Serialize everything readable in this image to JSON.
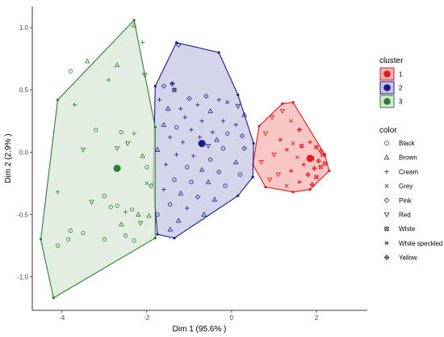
{
  "chart_data": {
    "type": "scatter",
    "xlabel": "Dim 1 (95.6% )",
    "ylabel": "Dim 2 (2.9% )",
    "xlim": [
      -4.7,
      3.2
    ],
    "ylim": [
      -1.27,
      1.17
    ],
    "x_ticks": [
      -4,
      -2,
      0,
      2
    ],
    "y_ticks": [
      -1.0,
      -0.5,
      0.0,
      0.5,
      1.0
    ],
    "x_tick_labels": [
      "-4",
      "-2",
      "0",
      "2"
    ],
    "y_tick_labels": [
      "-1.0",
      "-0.5",
      "0.0",
      "0.5",
      "1.0"
    ],
    "grid": false,
    "legend_position": "right",
    "clusters": [
      {
        "name": "1",
        "color": "#e41a1c",
        "fill": "#f8b4b4",
        "centroid": [
          1.85,
          -0.05
        ],
        "hull": [
          [
            0.65,
            0.21
          ],
          [
            1.2,
            0.39
          ],
          [
            1.45,
            0.4
          ],
          [
            2.2,
            -0.02
          ],
          [
            2.3,
            -0.15
          ],
          [
            1.85,
            -0.3
          ],
          [
            1.45,
            -0.32
          ],
          [
            0.8,
            -0.28
          ],
          [
            0.5,
            -0.1
          ]
        ]
      },
      {
        "name": "2",
        "color": "#1a1a8c",
        "fill": "#c5c6e3",
        "centroid": [
          -0.7,
          0.07
        ],
        "hull": [
          [
            -1.3,
            0.88
          ],
          [
            -0.3,
            0.8
          ],
          [
            0.15,
            0.46
          ],
          [
            0.52,
            0.07
          ],
          [
            0.5,
            -0.2
          ],
          [
            0.15,
            -0.35
          ],
          [
            -1.35,
            -0.69
          ],
          [
            -1.75,
            -0.66
          ],
          [
            -1.85,
            -0.25
          ],
          [
            -1.8,
            0.53
          ]
        ]
      },
      {
        "name": "3",
        "color": "#2e7d32",
        "fill": "#d8e8d6",
        "centroid": [
          -2.7,
          -0.13
        ],
        "hull": [
          [
            -2.3,
            1.06
          ],
          [
            -1.8,
            0.2
          ],
          [
            -1.8,
            -0.69
          ],
          [
            -4.2,
            -1.17
          ],
          [
            -4.5,
            -0.7
          ],
          [
            -4.1,
            0.42
          ]
        ]
      }
    ],
    "color_legend_title": "color",
    "color_legend": [
      {
        "label": "Black",
        "shape": "circle"
      },
      {
        "label": "Brown",
        "shape": "triangle"
      },
      {
        "label": "Cream",
        "shape": "plus"
      },
      {
        "label": "Grey",
        "shape": "cross"
      },
      {
        "label": "Pink",
        "shape": "diamond"
      },
      {
        "label": "Red",
        "shape": "triangle-down"
      },
      {
        "label": "White",
        "shape": "square-cross"
      },
      {
        "label": "White speckled",
        "shape": "asterisk"
      },
      {
        "label": "Yellow",
        "shape": "diamond-plus"
      }
    ],
    "cluster_legend_title": "cluster",
    "points": [
      {
        "cluster": 3,
        "shape": "plus",
        "x": -2.1,
        "y": 0.88
      },
      {
        "cluster": 3,
        "shape": "triangle",
        "x": -2.3,
        "y": 1.02
      },
      {
        "cluster": 3,
        "shape": "triangle",
        "x": -3.4,
        "y": 0.73
      },
      {
        "cluster": 3,
        "shape": "triangle",
        "x": -2.7,
        "y": 0.7
      },
      {
        "cluster": 3,
        "shape": "triangle-down",
        "x": -2.05,
        "y": 0.62
      },
      {
        "cluster": 3,
        "shape": "circle",
        "x": -3.8,
        "y": 0.65
      },
      {
        "cluster": 3,
        "shape": "plus",
        "x": -2.9,
        "y": 0.58
      },
      {
        "cluster": 3,
        "shape": "plus",
        "x": -3.7,
        "y": 0.38
      },
      {
        "cluster": 3,
        "shape": "circle",
        "x": -3.2,
        "y": 0.18
      },
      {
        "cluster": 3,
        "shape": "circle",
        "x": -2.6,
        "y": 0.16
      },
      {
        "cluster": 3,
        "shape": "plus",
        "x": -2.3,
        "y": 0.15
      },
      {
        "cluster": 3,
        "shape": "triangle-down",
        "x": -2.45,
        "y": 0.07
      },
      {
        "cluster": 3,
        "shape": "triangle-down",
        "x": -3.5,
        "y": 0.02
      },
      {
        "cluster": 3,
        "shape": "triangle-down",
        "x": -2.7,
        "y": 0.03
      },
      {
        "cluster": 3,
        "shape": "triangle",
        "x": -2.1,
        "y": -0.03
      },
      {
        "cluster": 3,
        "shape": "circle",
        "x": -2.0,
        "y": -0.12
      },
      {
        "cluster": 3,
        "shape": "cross",
        "x": -2.0,
        "y": -0.25
      },
      {
        "cluster": 3,
        "shape": "plus",
        "x": -4.1,
        "y": -0.32
      },
      {
        "cluster": 3,
        "shape": "circle",
        "x": -3.0,
        "y": -0.35
      },
      {
        "cluster": 3,
        "shape": "triangle-down",
        "x": -3.3,
        "y": -0.4
      },
      {
        "cluster": 3,
        "shape": "circle",
        "x": -2.85,
        "y": -0.44
      },
      {
        "cluster": 3,
        "shape": "circle",
        "x": -2.7,
        "y": -0.43
      },
      {
        "cluster": 3,
        "shape": "circle",
        "x": -2.35,
        "y": -0.46
      },
      {
        "cluster": 3,
        "shape": "plus",
        "x": -2.5,
        "y": -0.48
      },
      {
        "cluster": 3,
        "shape": "triangle",
        "x": -2.2,
        "y": -0.5
      },
      {
        "cluster": 3,
        "shape": "triangle",
        "x": -2.6,
        "y": -0.58
      },
      {
        "cluster": 3,
        "shape": "triangle",
        "x": -1.95,
        "y": -0.51
      },
      {
        "cluster": 3,
        "shape": "triangle-down",
        "x": -2.15,
        "y": -0.57
      },
      {
        "cluster": 3,
        "shape": "circle",
        "x": -3.8,
        "y": -0.63
      },
      {
        "cluster": 3,
        "shape": "circle",
        "x": -3.85,
        "y": -0.7
      },
      {
        "cluster": 3,
        "shape": "circle",
        "x": -3.5,
        "y": -0.65
      },
      {
        "cluster": 3,
        "shape": "circle",
        "x": -2.5,
        "y": -0.67
      },
      {
        "cluster": 3,
        "shape": "circle",
        "x": -2.3,
        "y": -0.71
      },
      {
        "cluster": 3,
        "shape": "circle",
        "x": -3.0,
        "y": -0.7
      },
      {
        "cluster": 3,
        "shape": "circle",
        "x": -4.1,
        "y": -0.75
      },
      {
        "cluster": 3,
        "shape": "diamond",
        "x": -1.9,
        "y": -0.27
      },
      {
        "cluster": 2,
        "shape": "diamond",
        "x": -1.25,
        "y": 0.86
      },
      {
        "cluster": 2,
        "shape": "diamond-plus",
        "x": -1.4,
        "y": 0.55
      },
      {
        "cluster": 2,
        "shape": "square-cross",
        "x": -1.35,
        "y": 0.5
      },
      {
        "cluster": 2,
        "shape": "diamond",
        "x": -1.6,
        "y": 0.53
      },
      {
        "cluster": 2,
        "shape": "plus",
        "x": -1.7,
        "y": 0.42
      },
      {
        "cluster": 2,
        "shape": "diamond",
        "x": -1.0,
        "y": 0.43
      },
      {
        "cluster": 2,
        "shape": "diamond",
        "x": -0.6,
        "y": 0.45
      },
      {
        "cluster": 2,
        "shape": "plus",
        "x": -0.3,
        "y": 0.42
      },
      {
        "cluster": 2,
        "shape": "cross",
        "x": -0.1,
        "y": 0.4
      },
      {
        "cluster": 2,
        "shape": "triangle-down",
        "x": 0.15,
        "y": 0.37
      },
      {
        "cluster": 2,
        "shape": "plus",
        "x": -0.8,
        "y": 0.38
      },
      {
        "cluster": 2,
        "shape": "plus",
        "x": -1.2,
        "y": 0.35
      },
      {
        "cluster": 2,
        "shape": "triangle",
        "x": -1.5,
        "y": 0.35
      },
      {
        "cluster": 2,
        "shape": "triangle",
        "x": -0.5,
        "y": 0.33
      },
      {
        "cluster": 2,
        "shape": "triangle",
        "x": 0.3,
        "y": 0.3
      },
      {
        "cluster": 2,
        "shape": "plus",
        "x": -1.1,
        "y": 0.28
      },
      {
        "cluster": 2,
        "shape": "plus",
        "x": -0.7,
        "y": 0.25
      },
      {
        "cluster": 2,
        "shape": "plus",
        "x": -0.2,
        "y": 0.25
      },
      {
        "cluster": 2,
        "shape": "plus",
        "x": 0.1,
        "y": 0.22
      },
      {
        "cluster": 2,
        "shape": "triangle",
        "x": -1.6,
        "y": 0.22
      },
      {
        "cluster": 2,
        "shape": "circle",
        "x": -1.3,
        "y": 0.2
      },
      {
        "cluster": 2,
        "shape": "plus",
        "x": -0.95,
        "y": 0.18
      },
      {
        "cluster": 2,
        "shape": "plus",
        "x": -0.45,
        "y": 0.16
      },
      {
        "cluster": 2,
        "shape": "circle",
        "x": -0.1,
        "y": 0.15
      },
      {
        "cluster": 2,
        "shape": "diamond",
        "x": 0.25,
        "y": 0.13
      },
      {
        "cluster": 2,
        "shape": "plus",
        "x": -1.45,
        "y": 0.12
      },
      {
        "cluster": 2,
        "shape": "plus",
        "x": -0.75,
        "y": 0.12
      },
      {
        "cluster": 2,
        "shape": "triangle",
        "x": -0.35,
        "y": 0.1
      },
      {
        "cluster": 2,
        "shape": "plus",
        "x": -1.15,
        "y": 0.08
      },
      {
        "cluster": 2,
        "shape": "triangle-down",
        "x": -0.55,
        "y": 0.05
      },
      {
        "cluster": 2,
        "shape": "circle",
        "x": -0.2,
        "y": 0.03
      },
      {
        "cluster": 2,
        "shape": "diamond",
        "x": 0.3,
        "y": 0.03
      },
      {
        "cluster": 2,
        "shape": "triangle",
        "x": -1.75,
        "y": 0.02
      },
      {
        "cluster": 2,
        "shape": "plus",
        "x": -1.3,
        "y": -0.02
      },
      {
        "cluster": 2,
        "shape": "plus",
        "x": -0.9,
        "y": -0.03
      },
      {
        "cluster": 2,
        "shape": "circle",
        "x": -0.5,
        "y": -0.06
      },
      {
        "cluster": 2,
        "shape": "triangle",
        "x": 0.1,
        "y": -0.08
      },
      {
        "cluster": 2,
        "shape": "plus",
        "x": -1.55,
        "y": -0.1
      },
      {
        "cluster": 2,
        "shape": "circle",
        "x": -1.05,
        "y": -0.12
      },
      {
        "cluster": 2,
        "shape": "triangle",
        "x": -0.7,
        "y": -0.14
      },
      {
        "cluster": 2,
        "shape": "diamond",
        "x": -0.3,
        "y": -0.16
      },
      {
        "cluster": 2,
        "shape": "circle",
        "x": 0.2,
        "y": -0.18
      },
      {
        "cluster": 2,
        "shape": "circle",
        "x": -1.35,
        "y": -0.22
      },
      {
        "cluster": 2,
        "shape": "circle",
        "x": -0.95,
        "y": -0.24
      },
      {
        "cluster": 2,
        "shape": "triangle",
        "x": -0.55,
        "y": -0.24
      },
      {
        "cluster": 2,
        "shape": "circle",
        "x": -0.15,
        "y": -0.27
      },
      {
        "cluster": 2,
        "shape": "plus",
        "x": -1.6,
        "y": -0.3
      },
      {
        "cluster": 2,
        "shape": "triangle",
        "x": -1.2,
        "y": -0.33
      },
      {
        "cluster": 2,
        "shape": "diamond",
        "x": -0.8,
        "y": -0.36
      },
      {
        "cluster": 2,
        "shape": "triangle",
        "x": -0.4,
        "y": -0.38
      },
      {
        "cluster": 2,
        "shape": "circle",
        "x": -1.45,
        "y": -0.42
      },
      {
        "cluster": 2,
        "shape": "plus",
        "x": -1.05,
        "y": -0.45
      },
      {
        "cluster": 2,
        "shape": "triangle",
        "x": -0.65,
        "y": -0.5
      },
      {
        "cluster": 2,
        "shape": "triangle",
        "x": -1.25,
        "y": -0.55
      },
      {
        "cluster": 2,
        "shape": "circle",
        "x": -1.75,
        "y": -0.5
      },
      {
        "cluster": 2,
        "shape": "triangle",
        "x": -1.45,
        "y": -0.62
      },
      {
        "cluster": 1,
        "shape": "triangle-down",
        "x": 1.2,
        "y": 0.33
      },
      {
        "cluster": 1,
        "shape": "triangle-down",
        "x": 0.95,
        "y": 0.28
      },
      {
        "cluster": 1,
        "shape": "cross",
        "x": 1.4,
        "y": 0.25
      },
      {
        "cluster": 1,
        "shape": "diamond-plus",
        "x": 1.6,
        "y": 0.18
      },
      {
        "cluster": 1,
        "shape": "triangle-down",
        "x": 0.8,
        "y": 0.15
      },
      {
        "cluster": 1,
        "shape": "asterisk",
        "x": 1.15,
        "y": 0.1
      },
      {
        "cluster": 1,
        "shape": "cross",
        "x": 1.45,
        "y": 0.07
      },
      {
        "cluster": 1,
        "shape": "square-cross",
        "x": 1.65,
        "y": 0.05
      },
      {
        "cluster": 1,
        "shape": "asterisk",
        "x": 1.85,
        "y": 0.08
      },
      {
        "cluster": 1,
        "shape": "square-cross",
        "x": 2.0,
        "y": 0.04
      },
      {
        "cluster": 1,
        "shape": "diamond-plus",
        "x": 2.1,
        "y": 0.01
      },
      {
        "cluster": 1,
        "shape": "square-cross",
        "x": 2.15,
        "y": -0.02
      },
      {
        "cluster": 1,
        "shape": "asterisk",
        "x": 1.3,
        "y": 0.02
      },
      {
        "cluster": 1,
        "shape": "triangle-down",
        "x": 1.0,
        "y": -0.02
      },
      {
        "cluster": 1,
        "shape": "cross",
        "x": 1.55,
        "y": -0.04
      },
      {
        "cluster": 1,
        "shape": "square-cross",
        "x": 1.9,
        "y": -0.05
      },
      {
        "cluster": 1,
        "shape": "diamond-plus",
        "x": 2.05,
        "y": -0.07
      },
      {
        "cluster": 1,
        "shape": "square-cross",
        "x": 2.2,
        "y": -0.09
      },
      {
        "cluster": 1,
        "shape": "asterisk",
        "x": 1.7,
        "y": -0.1
      },
      {
        "cluster": 1,
        "shape": "triangle-down",
        "x": 0.7,
        "y": -0.08
      },
      {
        "cluster": 1,
        "shape": "diamond-plus",
        "x": 1.95,
        "y": -0.13
      },
      {
        "cluster": 1,
        "shape": "square-cross",
        "x": 2.1,
        "y": -0.12
      },
      {
        "cluster": 1,
        "shape": "asterisk",
        "x": 1.4,
        "y": -0.15
      },
      {
        "cluster": 1,
        "shape": "triangle-down",
        "x": 1.1,
        "y": -0.18
      },
      {
        "cluster": 1,
        "shape": "diamond-plus",
        "x": 1.8,
        "y": -0.18
      },
      {
        "cluster": 1,
        "shape": "square-cross",
        "x": 2.0,
        "y": -0.2
      },
      {
        "cluster": 1,
        "shape": "triangle-down",
        "x": 0.9,
        "y": -0.22
      },
      {
        "cluster": 1,
        "shape": "asterisk",
        "x": 1.6,
        "y": -0.24
      },
      {
        "cluster": 1,
        "shape": "diamond-plus",
        "x": 1.9,
        "y": -0.26
      },
      {
        "cluster": 1,
        "shape": "cross",
        "x": 1.3,
        "y": -0.27
      }
    ]
  }
}
